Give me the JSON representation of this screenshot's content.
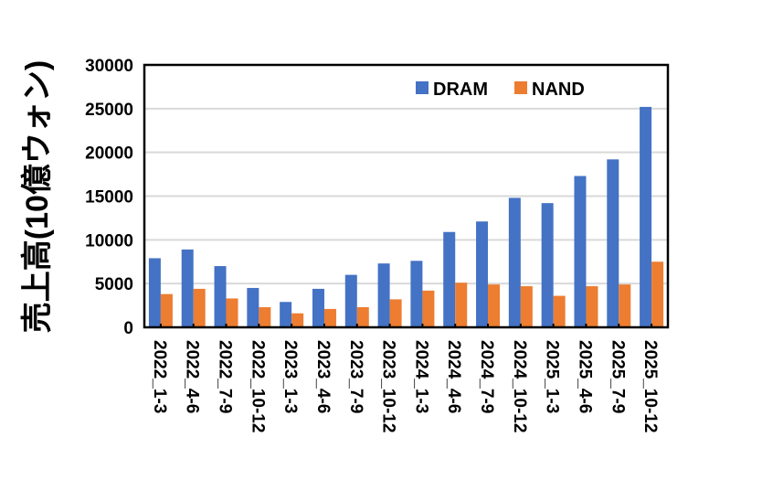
{
  "chart_data": {
    "type": "bar",
    "title": "",
    "xlabel": "",
    "ylabel": "売上高(10億ウォン)",
    "ylim": [
      0,
      30000
    ],
    "yticks": [
      0,
      5000,
      10000,
      15000,
      20000,
      25000,
      30000
    ],
    "grid": true,
    "legend_position": "top-right",
    "categories": [
      "2022_1-3",
      "2022_4-6",
      "2022_7-9",
      "2022_10-12",
      "2023_1-3",
      "2023_4-6",
      "2023_7-9",
      "2023_10-12",
      "2024_1-3",
      "2024_4-6",
      "2024_7-9",
      "2024_10-12",
      "2025_1-3",
      "2025_4-6",
      "2025_7-9",
      "2025_10-12"
    ],
    "series": [
      {
        "name": "DRAM",
        "color": "#4472C4",
        "values": [
          7900,
          8900,
          7000,
          4500,
          2900,
          4400,
          6000,
          7300,
          7600,
          10900,
          12100,
          14800,
          14200,
          17300,
          19200,
          25200
        ]
      },
      {
        "name": "NAND",
        "color": "#ED7D31",
        "values": [
          3800,
          4400,
          3300,
          2300,
          1600,
          2100,
          2300,
          3200,
          4200,
          5100,
          4900,
          4700,
          3600,
          4700,
          4900,
          7500
        ]
      }
    ]
  }
}
